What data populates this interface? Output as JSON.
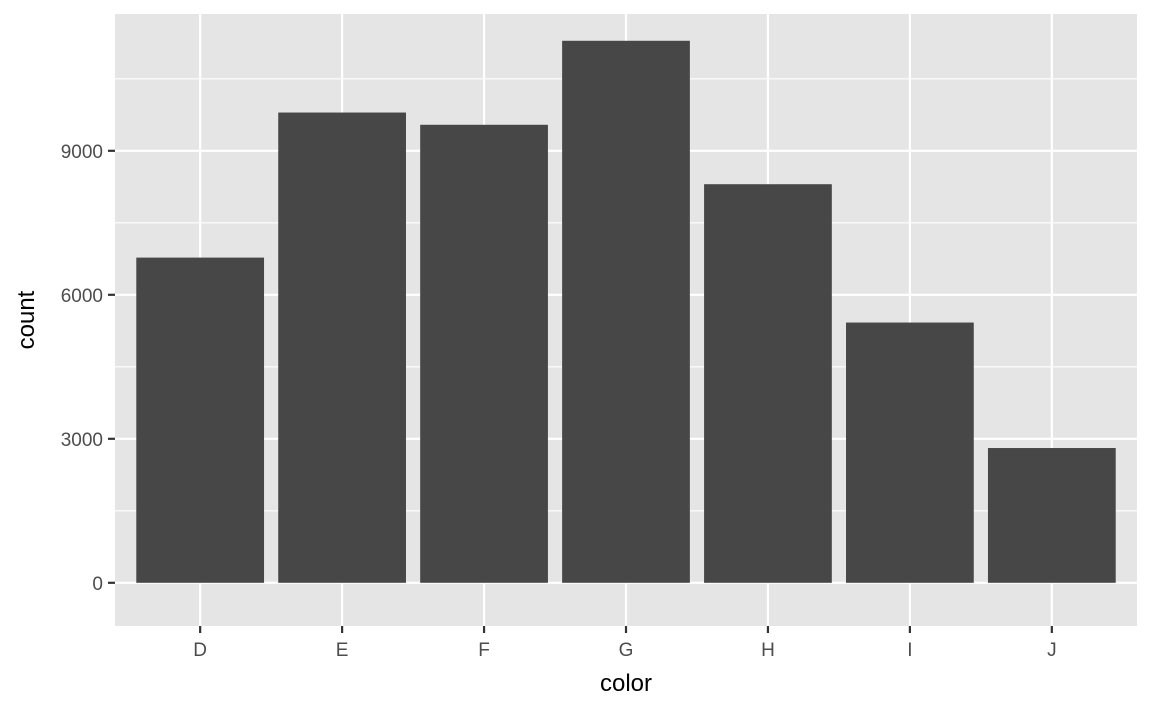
{
  "chart_data": {
    "type": "bar",
    "title": "",
    "xlabel": "color",
    "ylabel": "count",
    "categories": [
      "D",
      "E",
      "F",
      "G",
      "H",
      "I",
      "J"
    ],
    "values": [
      6775,
      9797,
      9542,
      11292,
      8304,
      5422,
      2808
    ],
    "ylim": [
      -900,
      11850
    ],
    "yticks": [
      0,
      3000,
      6000,
      9000
    ],
    "ytick_labels": [
      "0",
      "3000",
      "6000",
      "9000"
    ],
    "minor_yticks": [
      1500,
      4500,
      7500,
      10500
    ],
    "grid": true,
    "legend": "none",
    "colors": {
      "bar": "#474747",
      "panel_background": "#e5e5e5",
      "gridline": "#ffffff",
      "tick_text": "#4d4d4d",
      "axis_title": "#000000"
    }
  }
}
